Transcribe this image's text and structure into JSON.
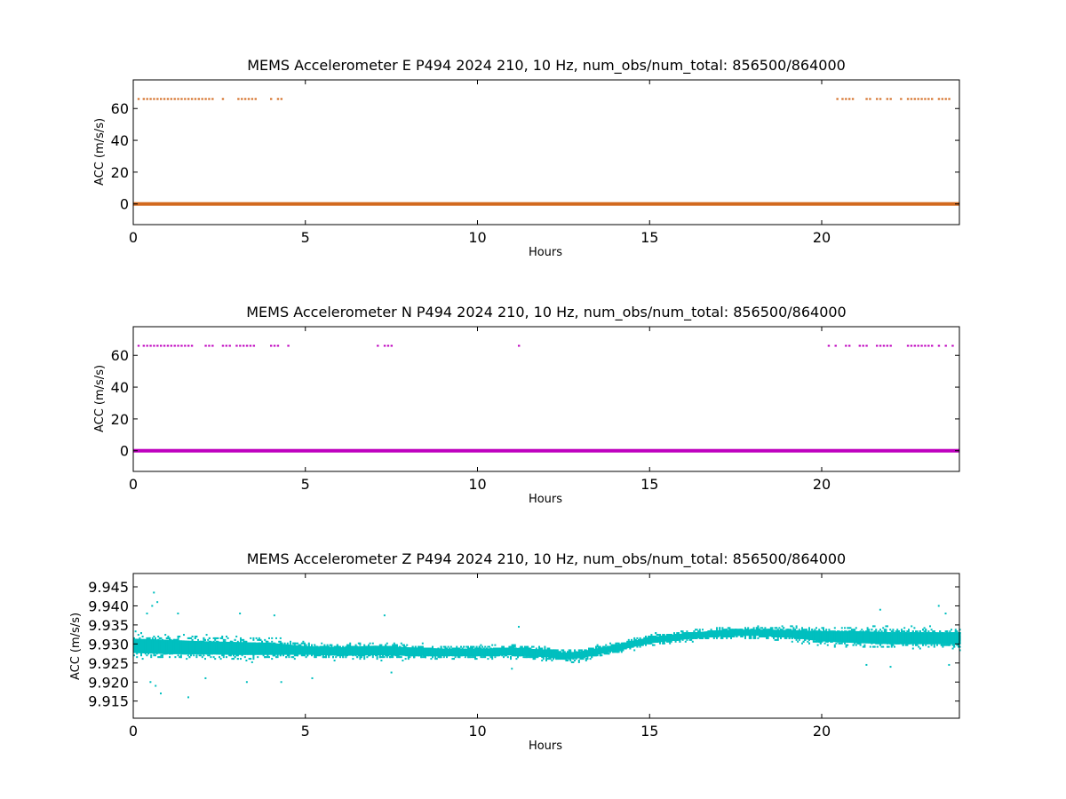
{
  "chart_data": [
    {
      "type": "scatter",
      "title": "MEMS Accelerometer E P494 2024 210, 10 Hz, num_obs/num_total: 856500/864000",
      "xlabel": "Hours",
      "ylabel": "ACC (m/s/s)",
      "xlim": [
        0,
        24
      ],
      "ylim": [
        -13,
        78
      ],
      "xticks": [
        0,
        5,
        10,
        15,
        20
      ],
      "yticks": [
        0,
        20,
        40,
        60
      ],
      "color": "#d2691e",
      "grid": false,
      "series": [
        {
          "baseline_value": 0.0,
          "baseline_x_range": [
            0,
            24
          ]
        },
        {
          "spike_value": 66,
          "spike_hours": [
            0.15,
            0.3,
            0.4,
            0.5,
            0.6,
            0.7,
            0.8,
            0.9,
            1.0,
            1.1,
            1.2,
            1.3,
            1.4,
            1.5,
            1.6,
            1.7,
            1.8,
            1.9,
            2.0,
            2.1,
            2.2,
            2.3,
            2.6,
            3.05,
            3.15,
            3.25,
            3.35,
            3.45,
            3.55,
            4.0,
            4.2,
            4.3,
            20.45,
            20.6,
            20.7,
            20.8,
            20.9,
            21.3,
            21.4,
            21.6,
            21.7,
            21.9,
            22.0,
            22.3,
            22.5,
            22.6,
            22.7,
            22.8,
            22.9,
            23.0,
            23.1,
            23.2,
            23.4,
            23.5,
            23.6,
            23.7
          ]
        }
      ]
    },
    {
      "type": "scatter",
      "title": "MEMS Accelerometer N P494 2024 210, 10 Hz, num_obs/num_total: 856500/864000",
      "xlabel": "Hours",
      "ylabel": "ACC (m/s/s)",
      "xlim": [
        0,
        24
      ],
      "ylim": [
        -13,
        78
      ],
      "xticks": [
        0,
        5,
        10,
        15,
        20
      ],
      "yticks": [
        0,
        20,
        40,
        60
      ],
      "color": "#bf00bf",
      "grid": false,
      "series": [
        {
          "baseline_value": 0.0,
          "baseline_x_range": [
            0,
            24
          ]
        },
        {
          "spike_value": 66,
          "spike_hours": [
            0.15,
            0.3,
            0.4,
            0.5,
            0.6,
            0.7,
            0.8,
            0.9,
            1.0,
            1.1,
            1.2,
            1.3,
            1.4,
            1.5,
            1.6,
            1.7,
            2.1,
            2.2,
            2.3,
            2.6,
            2.7,
            2.8,
            3.0,
            3.1,
            3.2,
            3.3,
            3.4,
            3.5,
            4.0,
            4.1,
            4.2,
            4.5,
            7.1,
            7.3,
            7.4,
            7.5,
            11.2,
            20.2,
            20.4,
            20.7,
            20.8,
            21.1,
            21.2,
            21.3,
            21.6,
            21.7,
            21.8,
            21.9,
            22.0,
            22.5,
            22.6,
            22.7,
            22.8,
            22.9,
            23.0,
            23.1,
            23.2,
            23.4,
            23.6,
            23.8
          ]
        }
      ]
    },
    {
      "type": "scatter",
      "title": "MEMS Accelerometer Z P494 2024 210, 10 Hz, num_obs/num_total: 856500/864000",
      "xlabel": "Hours",
      "ylabel": "ACC (m/s/s)",
      "xlim": [
        0,
        24
      ],
      "ylim": [
        9.9105,
        9.9485
      ],
      "xticks": [
        0,
        5,
        10,
        15,
        20
      ],
      "yticks": [
        9.915,
        9.92,
        9.925,
        9.93,
        9.935,
        9.94,
        9.945
      ],
      "ytick_labels": [
        "9.915",
        "9.920",
        "9.925",
        "9.930",
        "9.935",
        "9.940",
        "9.945"
      ],
      "color": "#00bfbf",
      "grid": false,
      "series": [
        {
          "name": "",
          "band_hours": [
            0,
            1,
            2,
            3,
            4,
            5,
            6,
            7,
            8,
            9,
            10,
            11,
            12,
            12.5,
            13,
            14,
            15,
            16,
            17,
            18,
            19,
            20,
            21,
            22,
            23,
            24
          ],
          "band_center": [
            9.9295,
            9.9292,
            9.929,
            9.9288,
            9.9287,
            9.9283,
            9.928,
            9.9283,
            9.928,
            9.9278,
            9.9278,
            9.928,
            9.9275,
            9.9268,
            9.9272,
            9.929,
            9.931,
            9.932,
            9.9328,
            9.933,
            9.9327,
            9.932,
            9.9318,
            9.9315,
            9.9315,
            9.9315
          ],
          "band_halfwidth": [
            0.0042,
            0.0042,
            0.0038,
            0.0038,
            0.0035,
            0.0025,
            0.0025,
            0.0028,
            0.0025,
            0.0022,
            0.0022,
            0.0022,
            0.0022,
            0.002,
            0.002,
            0.0018,
            0.0018,
            0.0018,
            0.0018,
            0.0018,
            0.0022,
            0.003,
            0.0035,
            0.0035,
            0.0035,
            0.0035
          ],
          "outliers": [
            [
              0.6,
              9.9435
            ],
            [
              0.7,
              9.941
            ],
            [
              0.55,
              9.94
            ],
            [
              0.4,
              9.938
            ],
            [
              0.8,
              9.917
            ],
            [
              0.65,
              9.919
            ],
            [
              0.5,
              9.92
            ],
            [
              1.6,
              9.916
            ],
            [
              1.3,
              9.938
            ],
            [
              2.1,
              9.921
            ],
            [
              3.1,
              9.938
            ],
            [
              3.3,
              9.92
            ],
            [
              4.1,
              9.9375
            ],
            [
              4.3,
              9.92
            ],
            [
              5.2,
              9.921
            ],
            [
              7.3,
              9.9375
            ],
            [
              7.5,
              9.9225
            ],
            [
              11.2,
              9.9345
            ],
            [
              11.0,
              9.9235
            ],
            [
              21.3,
              9.9245
            ],
            [
              21.7,
              9.939
            ],
            [
              22.0,
              9.924
            ],
            [
              23.4,
              9.94
            ],
            [
              23.6,
              9.938
            ],
            [
              23.7,
              9.9245
            ]
          ]
        }
      ]
    }
  ]
}
